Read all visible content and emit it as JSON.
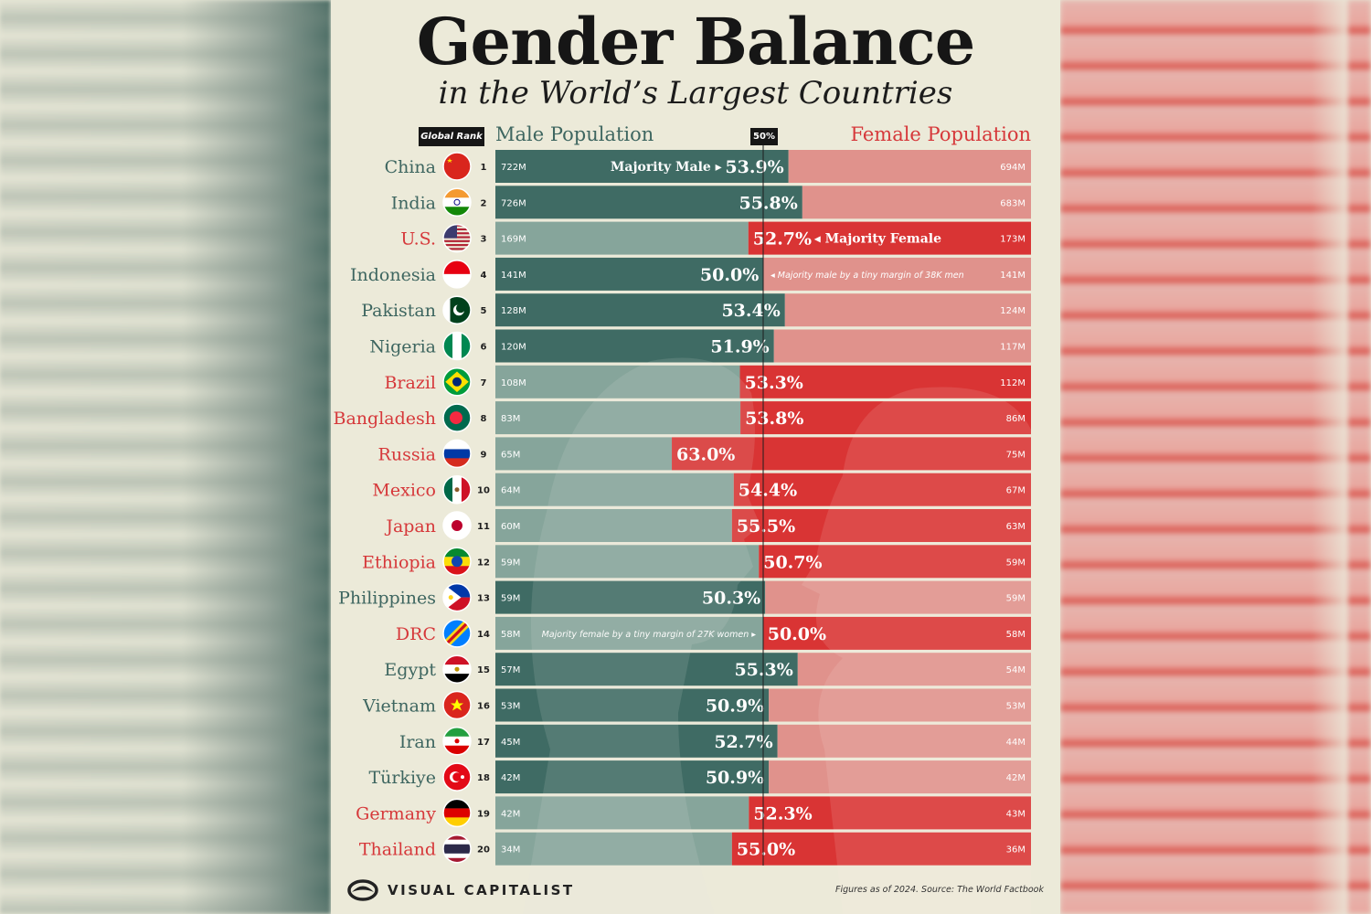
{
  "header": {
    "title": "Gender Balance",
    "subtitle": "in the World’s Largest Countries",
    "rank_label": "Global Rank",
    "male_label": "Male Population",
    "female_label": "Female Population",
    "midline_label": "50%"
  },
  "footer": {
    "brand": "VISUAL CAPITALIST",
    "source": "Figures as of 2024. Source: The World Factbook"
  },
  "colors": {
    "male_majority": "#3f6b64",
    "male_minority": "#86a59b",
    "female_majority": "#d93434",
    "female_minority": "#e0928c",
    "country_male": "#3e6660",
    "country_female": "#d6383a"
  },
  "chart_data": {
    "type": "bar",
    "annotations": {
      "China": "Majority Male",
      "U.S.": "Majority Female",
      "Indonesia": "Majority male by a tiny margin of 38K men",
      "DRC": "Majority female by a tiny margin of 27K women"
    },
    "rows": [
      {
        "country": "China",
        "rank": 1,
        "flag": "china-flag",
        "male": "722M",
        "female": "694M",
        "majority": "male",
        "share_label": "53.9%",
        "male_share": 50.99
      },
      {
        "country": "India",
        "rank": 2,
        "flag": "india-flag",
        "male": "726M",
        "female": "683M",
        "majority": "male",
        "share_label": "55.8%",
        "male_share": 51.53
      },
      {
        "country": "U.S.",
        "rank": 3,
        "flag": "usa-flag",
        "male": "169M",
        "female": "173M",
        "majority": "female",
        "share_label": "52.7%",
        "male_share": 49.42
      },
      {
        "country": "Indonesia",
        "rank": 4,
        "flag": "indonesia-flag",
        "male": "141M",
        "female": "141M",
        "majority": "male",
        "share_label": "50.0%",
        "male_share": 50.01
      },
      {
        "country": "Pakistan",
        "rank": 5,
        "flag": "pakistan-flag",
        "male": "128M",
        "female": "124M",
        "majority": "male",
        "share_label": "53.4%",
        "male_share": 50.85
      },
      {
        "country": "Nigeria",
        "rank": 6,
        "flag": "nigeria-flag",
        "male": "120M",
        "female": "117M",
        "majority": "male",
        "share_label": "51.9%",
        "male_share": 50.42
      },
      {
        "country": "Brazil",
        "rank": 7,
        "flag": "brazil-flag",
        "male": "108M",
        "female": "112M",
        "majority": "female",
        "share_label": "53.3%",
        "male_share": 49.09
      },
      {
        "country": "Bangladesh",
        "rank": 8,
        "flag": "bangladesh-flag",
        "male": "83M",
        "female": "86M",
        "majority": "female",
        "share_label": "53.8%",
        "male_share": 49.11
      },
      {
        "country": "Russia",
        "rank": 9,
        "flag": "russia-flag",
        "male": "65M",
        "female": "75M",
        "majority": "female",
        "share_label": "63.0%",
        "male_share": 46.43
      },
      {
        "country": "Mexico",
        "rank": 10,
        "flag": "mexico-flag",
        "male": "64M",
        "female": "67M",
        "majority": "female",
        "share_label": "54.4%",
        "male_share": 48.85
      },
      {
        "country": "Japan",
        "rank": 11,
        "flag": "japan-flag",
        "male": "60M",
        "female": "63M",
        "majority": "female",
        "share_label": "55.5%",
        "male_share": 48.78
      },
      {
        "country": "Ethiopia",
        "rank": 12,
        "flag": "ethiopia-flag",
        "male": "59M",
        "female": "59M",
        "majority": "female",
        "share_label": "50.7%",
        "male_share": 49.83
      },
      {
        "country": "Philippines",
        "rank": 13,
        "flag": "philippines-flag",
        "male": "59M",
        "female": "59M",
        "majority": "male",
        "share_label": "50.3%",
        "male_share": 50.08
      },
      {
        "country": "DRC",
        "rank": 14,
        "flag": "drc-flag",
        "male": "58M",
        "female": "58M",
        "majority": "female",
        "share_label": "50.0%",
        "male_share": 49.99
      },
      {
        "country": "Egypt",
        "rank": 15,
        "flag": "egypt-flag",
        "male": "57M",
        "female": "54M",
        "majority": "male",
        "share_label": "55.3%",
        "male_share": 51.35
      },
      {
        "country": "Vietnam",
        "rank": 16,
        "flag": "vietnam-flag",
        "male": "53M",
        "female": "53M",
        "majority": "male",
        "share_label": "50.9%",
        "male_share": 50.22
      },
      {
        "country": "Iran",
        "rank": 17,
        "flag": "iran-flag",
        "male": "45M",
        "female": "44M",
        "majority": "male",
        "share_label": "52.7%",
        "male_share": 50.56
      },
      {
        "country": "Türkiye",
        "rank": 18,
        "flag": "turkiye-flag",
        "male": "42M",
        "female": "42M",
        "majority": "male",
        "share_label": "50.9%",
        "male_share": 50.22
      },
      {
        "country": "Germany",
        "rank": 19,
        "flag": "germany-flag",
        "male": "42M",
        "female": "43M",
        "majority": "female",
        "share_label": "52.3%",
        "male_share": 49.44
      },
      {
        "country": "Thailand",
        "rank": 20,
        "flag": "thailand-flag",
        "male": "34M",
        "female": "36M",
        "majority": "female",
        "share_label": "55.0%",
        "male_share": 48.78
      }
    ]
  }
}
